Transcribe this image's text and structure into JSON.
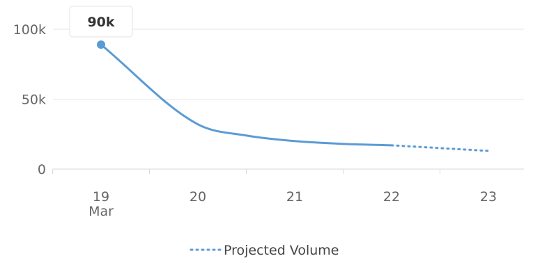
{
  "chart_data": {
    "type": "line",
    "x": [
      "19",
      "20",
      "21",
      "22",
      "23"
    ],
    "x_month_label": "Mar",
    "y_ticks": [
      "0",
      "50k",
      "100k"
    ],
    "y_tick_values": [
      0,
      50000,
      100000
    ],
    "ylim": [
      0,
      100000
    ],
    "grid": true,
    "legend_position": "bottom",
    "series": [
      {
        "name": "",
        "style": "solid",
        "color": "#5b9bd5",
        "x": [
          19,
          20,
          20.5,
          21,
          21.5,
          22
        ],
        "values": [
          89000,
          32000,
          24000,
          20000,
          18000,
          17000
        ]
      },
      {
        "name": "Projected Volume",
        "style": "dotted",
        "color": "#5b9bd5",
        "x": [
          22,
          23
        ],
        "values": [
          17000,
          13000
        ]
      }
    ],
    "tooltip": {
      "label": "90k",
      "x": 19,
      "value": 89000
    }
  }
}
